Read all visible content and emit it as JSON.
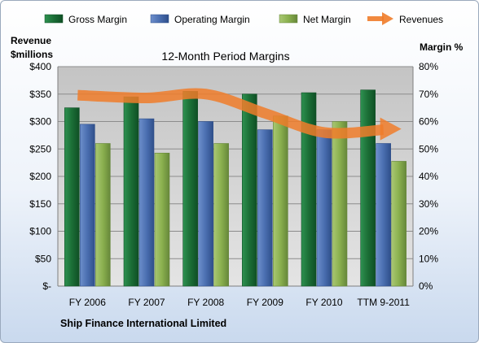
{
  "chart_data": {
    "type": "bar",
    "title": "12-Month Period Margins",
    "categories": [
      "FY 2006",
      "FY 2007",
      "FY 2008",
      "FY 2009",
      "FY 2010",
      "TTM 9-2011"
    ],
    "series": [
      {
        "name": "Gross Margin",
        "type": "bar",
        "axis": "right",
        "values": [
          65,
          69,
          71,
          70,
          70.5,
          71.5
        ],
        "color": "#1e7a3c"
      },
      {
        "name": "Operating Margin",
        "type": "bar",
        "axis": "right",
        "values": [
          59,
          61,
          60,
          57,
          57,
          52
        ],
        "color": "#4a6eb0"
      },
      {
        "name": "Net Margin",
        "type": "bar",
        "axis": "right",
        "values": [
          52,
          48.5,
          52,
          62,
          60,
          45.5
        ],
        "color": "#8ab04e"
      },
      {
        "name": "Revenues",
        "type": "line",
        "axis": "left",
        "values": [
          348,
          343,
          350,
          315,
          280,
          285
        ],
        "color": "#f07c2a"
      }
    ],
    "left_axis": {
      "label_line1": "Revenue",
      "label_line2": "$millions",
      "ylim": [
        0,
        400
      ],
      "ticks": [
        "$-",
        "$50",
        "$100",
        "$150",
        "$200",
        "$250",
        "$300",
        "$350",
        "$400"
      ]
    },
    "right_axis": {
      "label": "Margin %",
      "ylim": [
        0,
        80
      ],
      "ticks": [
        "0%",
        "10%",
        "20%",
        "30%",
        "40%",
        "50%",
        "60%",
        "70%",
        "80%"
      ]
    },
    "grid": true,
    "legend_position": "top",
    "plot_background": "#d4d4d4"
  },
  "footer": {
    "company": "Ship Finance International Limited"
  }
}
